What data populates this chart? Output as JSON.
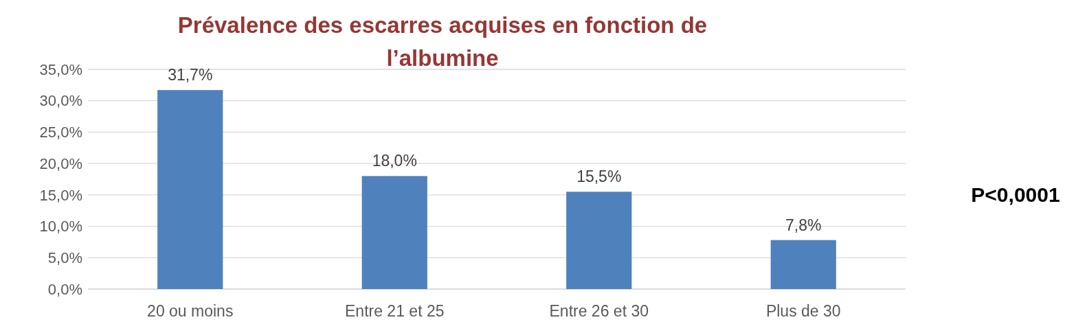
{
  "chart_data": {
    "type": "bar",
    "title": "Prévalence des escarres acquises en fonction de l’albumine",
    "categories": [
      "20 ou moins",
      "Entre 21 et 25",
      "Entre 26 et 30",
      "Plus de 30"
    ],
    "values": [
      31.7,
      18.0,
      15.5,
      7.8
    ],
    "value_labels": [
      "31,7%",
      "18,0%",
      "15,5%",
      "7,8%"
    ],
    "color": "#4f81bd",
    "ylim": [
      0,
      35
    ],
    "yticks": [
      {
        "value": 0,
        "label": "0,0%"
      },
      {
        "value": 5,
        "label": "5,0%"
      },
      {
        "value": 10,
        "label": "10,0%"
      },
      {
        "value": 15,
        "label": "15,0%"
      },
      {
        "value": 20,
        "label": "20,0%"
      },
      {
        "value": 25,
        "label": "25,0%"
      },
      {
        "value": 30,
        "label": "30,0%"
      },
      {
        "value": 35,
        "label": "35,0%"
      }
    ],
    "grid": "y",
    "annotations": [
      "P<0,0001"
    ]
  }
}
